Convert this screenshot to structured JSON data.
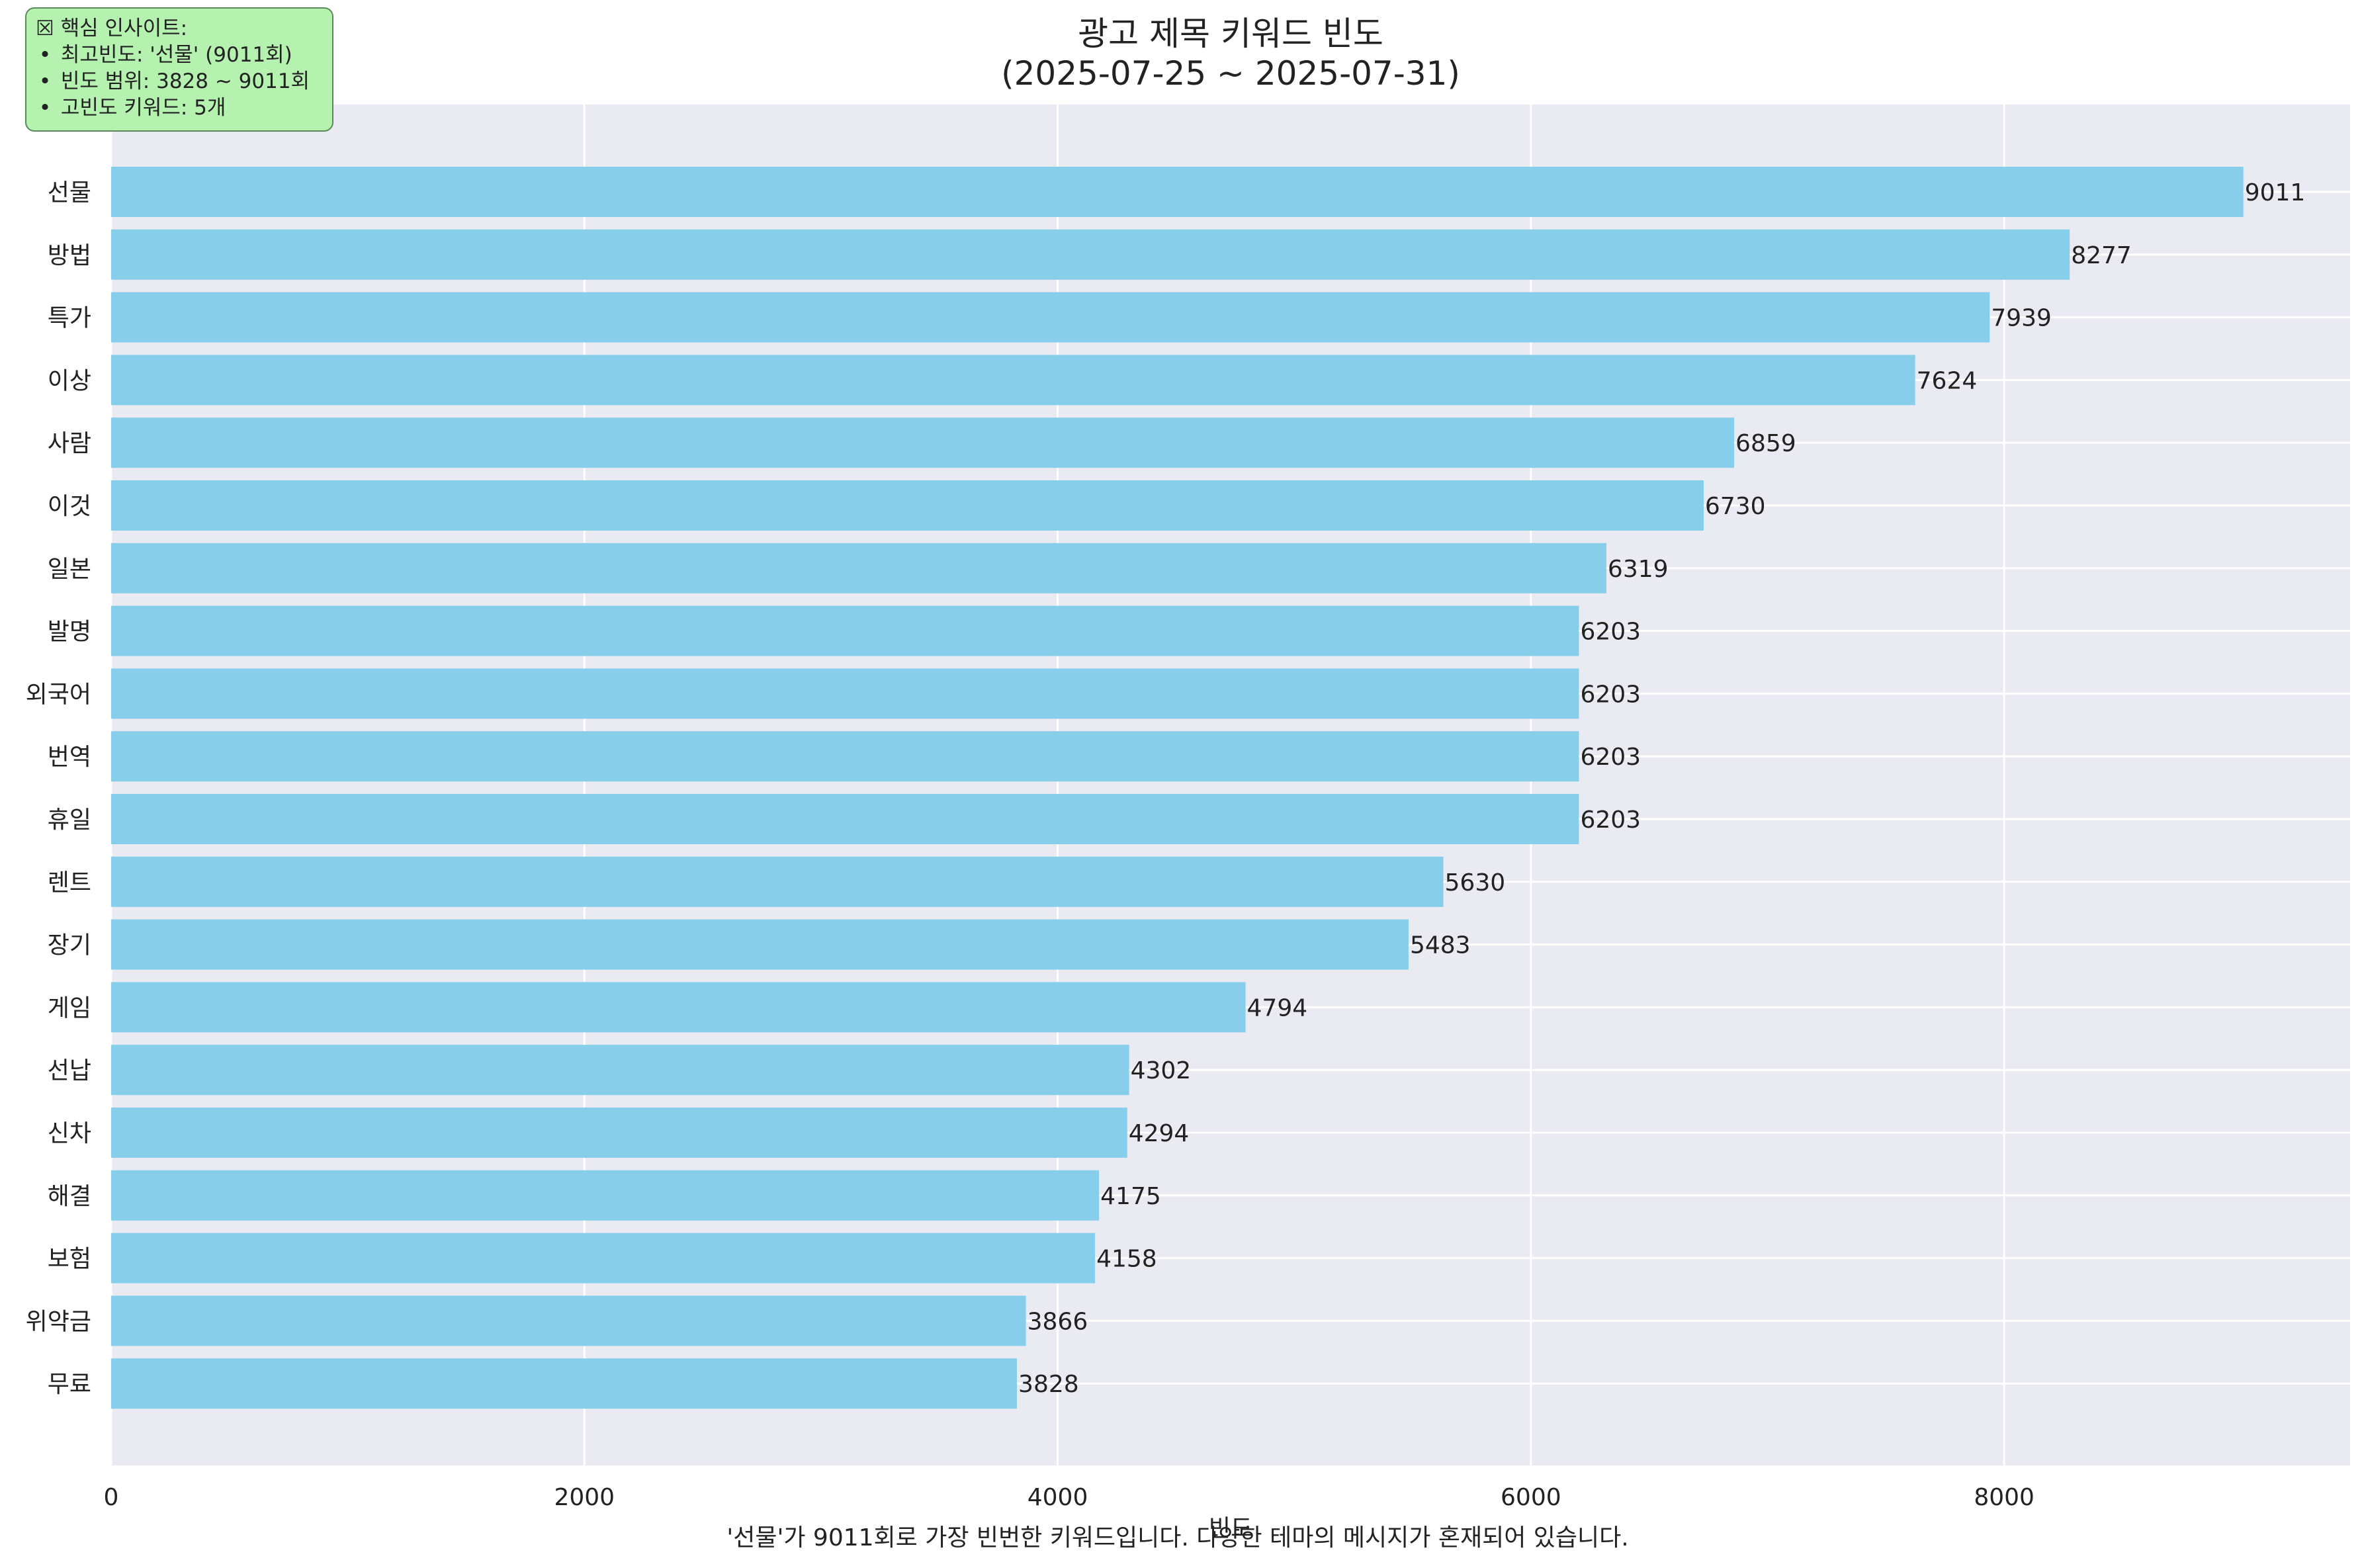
{
  "chart_data": {
    "type": "bar",
    "orientation": "horizontal",
    "title": [
      "광고 제목 키워드 빈도",
      "(2025-07-25 ~ 2025-07-31)"
    ],
    "xlabel": "빈도",
    "ylabel": "",
    "xlim": [
      0,
      9462
    ],
    "x_ticks": [
      "0",
      "2000",
      "4000",
      "6000",
      "8000"
    ],
    "x_tick_values": [
      0,
      2000,
      4000,
      6000,
      8000
    ],
    "grid": true,
    "bar_color": "#87ceeb",
    "background_color": "#eaeaf2",
    "categories": [
      "선물",
      "방법",
      "특가",
      "이상",
      "사람",
      "이것",
      "일본",
      "발명",
      "외국어",
      "번역",
      "휴일",
      "렌트",
      "장기",
      "게임",
      "선납",
      "신차",
      "해결",
      "보험",
      "위약금",
      "무료"
    ],
    "values": [
      9011,
      8277,
      7939,
      7624,
      6859,
      6730,
      6319,
      6203,
      6203,
      6203,
      6203,
      5630,
      5483,
      4794,
      4302,
      4294,
      4175,
      4158,
      3866,
      3828
    ]
  },
  "insight_box": {
    "header": "☒ 핵심 인사이트:",
    "bullet": "•",
    "lines": [
      "최고빈도: '선물' (9011회)",
      "빈도 범위: 3828 ~ 9011회",
      "고빈도 키워드: 5개"
    ],
    "background_color": "#b5f2b0"
  },
  "caption": "'선물'가 9011회로 가장 빈번한 키워드입니다. 다양한 테마의 메시지가 혼재되어 있습니다."
}
